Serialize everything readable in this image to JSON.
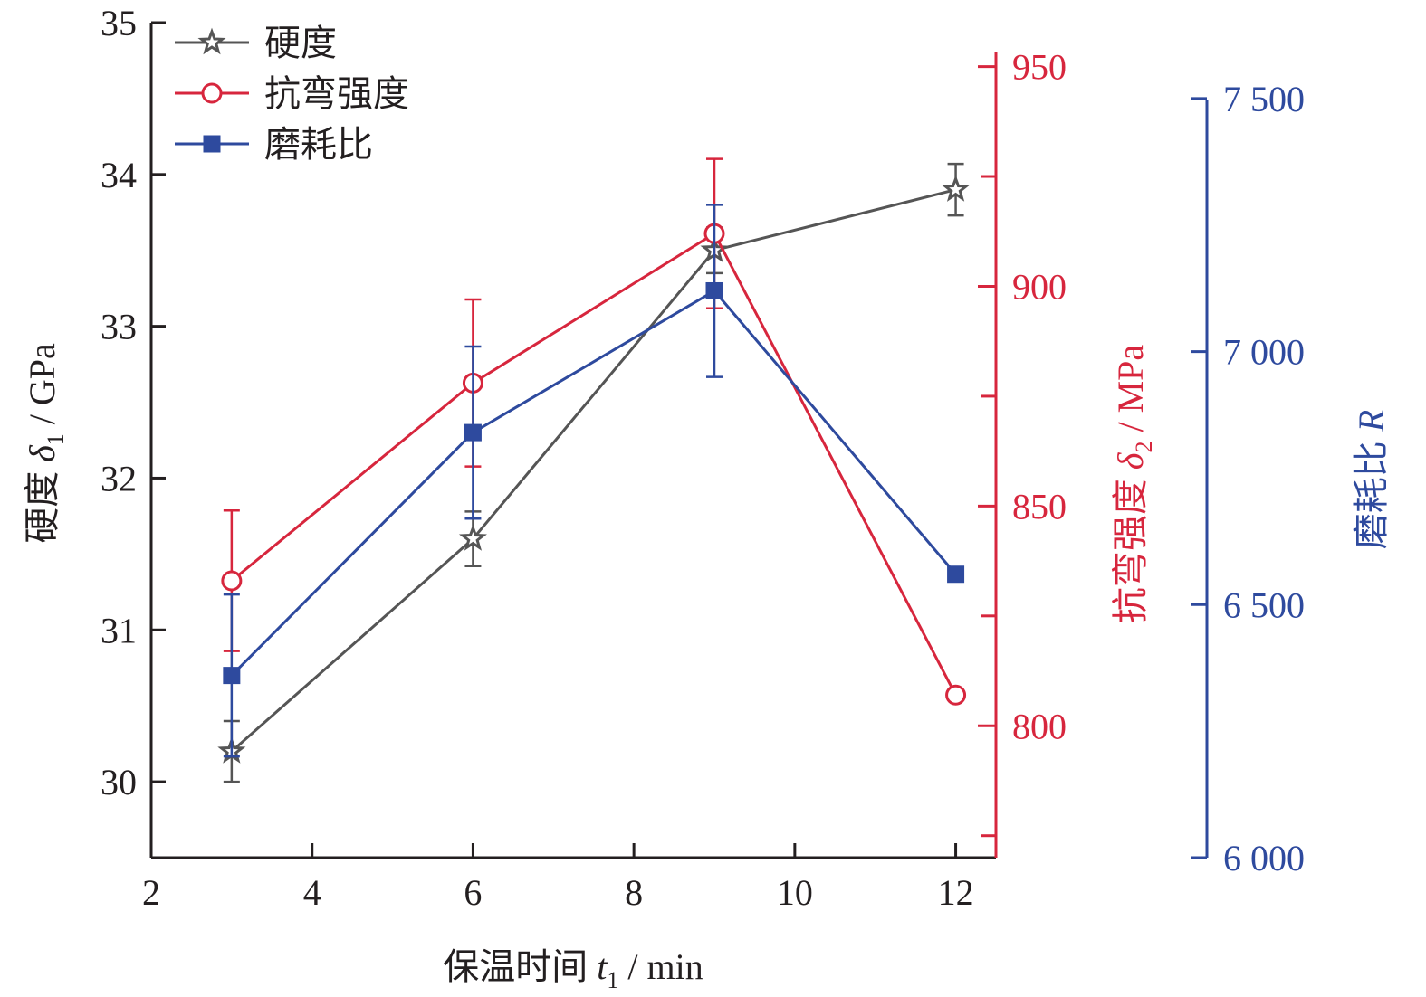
{
  "chart_data": {
    "type": "line",
    "x": [
      3,
      6,
      9,
      12
    ],
    "xlim": [
      2,
      12.5
    ],
    "xticks": [
      "2",
      "4",
      "6",
      "8",
      "10",
      "12"
    ],
    "xlabel": {
      "prefix": "保温时间 ",
      "var": "t",
      "sub": "1",
      "unit": " / min"
    },
    "axes": {
      "hardness": {
        "label": {
          "prefix": "硬度 ",
          "var": "δ",
          "sub": "1",
          "unit": " / GPa"
        },
        "ylim": [
          29.5,
          35
        ],
        "ticks": [
          "30",
          "31",
          "32",
          "33",
          "34",
          "35"
        ],
        "color": "#231f20"
      },
      "strength": {
        "label": {
          "prefix": "抗弯强度 ",
          "var": "δ",
          "sub": "2",
          "unit": " / MPa"
        },
        "ylim": [
          770,
          960
        ],
        "ticks": [
          "800",
          "850",
          "900",
          "950"
        ],
        "color": "#d7263d"
      },
      "ratio": {
        "label": {
          "prefix": "磨耗比 ",
          "var": "R"
        },
        "ylim": [
          6000,
          7650
        ],
        "ticks": [
          "6 000",
          "6 500",
          "7 000",
          "7 500"
        ],
        "color": "#2e4a9e"
      }
    },
    "series": [
      {
        "name": "硬度",
        "axis": "hardness",
        "marker": "star",
        "color": "#555555",
        "values": [
          30.2,
          31.6,
          33.5,
          33.9
        ],
        "errors": [
          0.2,
          0.18,
          0.15,
          0.17
        ]
      },
      {
        "name": "抗弯强度",
        "axis": "strength",
        "marker": "circle",
        "color": "#d7263d",
        "values": [
          833,
          878,
          912,
          807
        ],
        "errors": [
          16,
          19,
          17,
          0
        ]
      },
      {
        "name": "磨耗比",
        "axis": "ratio",
        "marker": "square",
        "color": "#2e4a9e",
        "values": [
          6360,
          6840,
          7120,
          6560
        ],
        "errors": [
          160,
          170,
          170,
          0
        ]
      }
    ],
    "legend": "top-left"
  }
}
